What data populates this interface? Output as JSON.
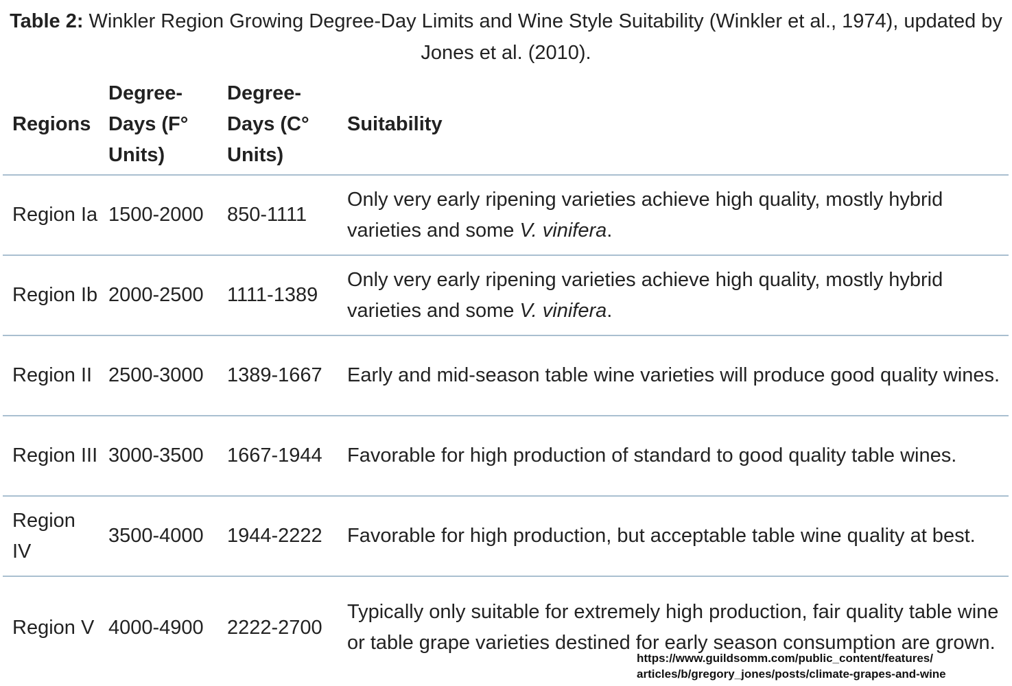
{
  "caption": {
    "label": "Table 2:",
    "text": " Winkler Region Growing Degree-Day Limits and Wine Style Suitability (Winkler et al., 1974), updated by Jones et al. (2010)."
  },
  "headers": {
    "regions": "Regions",
    "degree_days_f": "Degree-Days (F° Units)",
    "degree_days_c": "Degree-Days (C° Units)",
    "suitability": "Suitability"
  },
  "rows": [
    {
      "region": "Region Ia",
      "f": "1500-2000",
      "c": "850-1111",
      "suit_text": "Only very early ripening varieties achieve high quality, mostly hybrid varieties and some ",
      "suit_italic": "V. vinifera",
      "suit_end": "."
    },
    {
      "region": "Region Ib",
      "f": "2000-2500",
      "c": "1111-1389",
      "suit_text": "Only very early ripening varieties achieve high quality, mostly hybrid varieties and some ",
      "suit_italic": "V. vinifera",
      "suit_end": "."
    },
    {
      "region": "Region II",
      "f": "2500-3000",
      "c": "1389-1667",
      "suit_text": "Early and mid-season table wine varieties will produce good quality wines.",
      "suit_italic": "",
      "suit_end": ""
    },
    {
      "region": "Region III",
      "f": "3000-3500",
      "c": "1667-1944",
      "suit_text": "Favorable for high production of standard to good quality table wines.",
      "suit_italic": "",
      "suit_end": ""
    },
    {
      "region": "Region IV",
      "f": "3500-4000",
      "c": "1944-2222",
      "suit_text": "Favorable for high production, but acceptable table wine quality at best.",
      "suit_italic": "",
      "suit_end": ""
    },
    {
      "region": "Region V",
      "f": "4000-4900",
      "c": "2222-2700",
      "suit_text": "Typically only suitable for extremely high production, fair quality table wine or table grape varieties destined for early season consumption are grown.",
      "suit_italic": "",
      "suit_end": ""
    }
  ],
  "source": {
    "line1": "https://www.guildsomm.com/public_content/features/",
    "line2": "articles/b/gregory_jones/posts/climate-grapes-and-wine"
  }
}
